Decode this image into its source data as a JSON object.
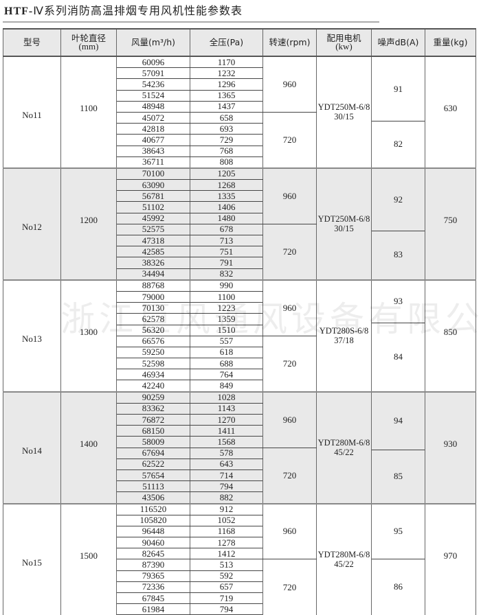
{
  "title_prefix": "HTF-",
  "title_rest": "Ⅳ系列消防高温排烟专用风机性能参数表",
  "watermark": "浙江巨风通风设备有限公司",
  "headers": {
    "model": "型号",
    "diameter": "叶轮直径",
    "diameter_unit": "(mm)",
    "flow": "风量(m³/h)",
    "pressure": "全压(Pa)",
    "speed": "转速(rpm)",
    "motor": "配用电机",
    "motor_unit": "(kw)",
    "noise": "噪声dB(A)",
    "weight": "重量(kg)"
  },
  "groups": [
    {
      "model": "No11",
      "diameter": "1100",
      "motor": "YDT250M-6/8",
      "power": "30/15",
      "noise_high": "91",
      "noise_low": "82",
      "weight": "630",
      "speed_high": "960",
      "speed_low": "720",
      "rows": [
        [
          "60096",
          "1170"
        ],
        [
          "57091",
          "1232"
        ],
        [
          "54236",
          "1296"
        ],
        [
          "51524",
          "1365"
        ],
        [
          "48948",
          "1437"
        ],
        [
          "45072",
          "658"
        ],
        [
          "42818",
          "693"
        ],
        [
          "40677",
          "729"
        ],
        [
          "38643",
          "768"
        ],
        [
          "36711",
          "808"
        ]
      ]
    },
    {
      "model": "No12",
      "diameter": "1200",
      "motor": "YDT250M-6/8",
      "power": "30/15",
      "noise_high": "92",
      "noise_low": "83",
      "weight": "750",
      "speed_high": "960",
      "speed_low": "720",
      "rows": [
        [
          "70100",
          "1205"
        ],
        [
          "63090",
          "1268"
        ],
        [
          "56781",
          "1335"
        ],
        [
          "51102",
          "1406"
        ],
        [
          "45992",
          "1480"
        ],
        [
          "52575",
          "678"
        ],
        [
          "47318",
          "713"
        ],
        [
          "42585",
          "751"
        ],
        [
          "38326",
          "791"
        ],
        [
          "34494",
          "832"
        ]
      ]
    },
    {
      "model": "No13",
      "diameter": "1300",
      "motor": "YDT280S-6/8",
      "power": "37/18",
      "noise_high": "93",
      "noise_low": "84",
      "weight": "850",
      "speed_high": "960",
      "speed_low": "720",
      "rows": [
        [
          "88768",
          "990"
        ],
        [
          "79000",
          "1100"
        ],
        [
          "70130",
          "1223"
        ],
        [
          "62578",
          "1359"
        ],
        [
          "56320",
          "1510"
        ],
        [
          "66576",
          "557"
        ],
        [
          "59250",
          "618"
        ],
        [
          "52598",
          "688"
        ],
        [
          "46934",
          "764"
        ],
        [
          "42240",
          "849"
        ]
      ]
    },
    {
      "model": "No14",
      "diameter": "1400",
      "motor": "YDT280M-6/8",
      "power": "45/22",
      "noise_high": "94",
      "noise_low": "85",
      "weight": "930",
      "speed_high": "960",
      "speed_low": "720",
      "rows": [
        [
          "90259",
          "1028"
        ],
        [
          "83362",
          "1143"
        ],
        [
          "76872",
          "1270"
        ],
        [
          "68150",
          "1411"
        ],
        [
          "58009",
          "1568"
        ],
        [
          "67694",
          "578"
        ],
        [
          "62522",
          "643"
        ],
        [
          "57654",
          "714"
        ],
        [
          "51113",
          "794"
        ],
        [
          "43506",
          "882"
        ]
      ]
    },
    {
      "model": "No15",
      "diameter": "1500",
      "motor": "YDT280M-6/8",
      "power": "45/22",
      "noise_high": "95",
      "noise_low": "86",
      "weight": "970",
      "speed_high": "960",
      "speed_low": "720",
      "rows": [
        [
          "116520",
          "912"
        ],
        [
          "105820",
          "1052"
        ],
        [
          "96448",
          "1168"
        ],
        [
          "90460",
          "1278"
        ],
        [
          "82645",
          "1412"
        ],
        [
          "87390",
          "513"
        ],
        [
          "79365",
          "592"
        ],
        [
          "72336",
          "657"
        ],
        [
          "67845",
          "719"
        ],
        [
          "61984",
          "794"
        ]
      ]
    }
  ]
}
